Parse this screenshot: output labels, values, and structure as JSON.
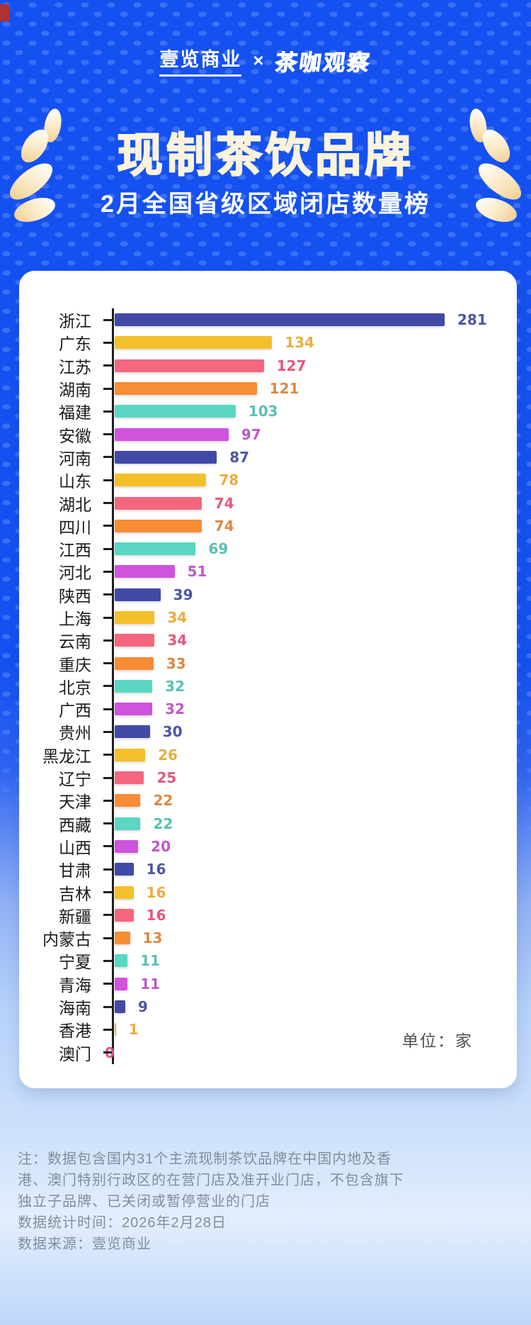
{
  "header": {
    "brand_left": "壹览商业",
    "separator": "×",
    "brand_right": "茶咖观察"
  },
  "title": {
    "main": "现制茶饮品牌",
    "subtitle": "2月全国省级区域闭店数量榜"
  },
  "chart_data": {
    "type": "bar",
    "orientation": "horizontal",
    "title": "现制茶饮品牌2月全国省级区域闭店数量榜",
    "unit_label": "单位：家",
    "categories": [
      "浙江",
      "广东",
      "江苏",
      "湖南",
      "福建",
      "安徽",
      "河南",
      "山东",
      "湖北",
      "四川",
      "江西",
      "河北",
      "陕西",
      "上海",
      "云南",
      "重庆",
      "北京",
      "广西",
      "贵州",
      "黑龙江",
      "辽宁",
      "天津",
      "西藏",
      "山西",
      "甘肃",
      "吉林",
      "新疆",
      "内蒙古",
      "宁夏",
      "青海",
      "海南",
      "香港",
      "澳门"
    ],
    "values": [
      281,
      134,
      127,
      121,
      103,
      97,
      87,
      78,
      74,
      74,
      69,
      51,
      39,
      34,
      34,
      33,
      32,
      32,
      30,
      26,
      25,
      22,
      22,
      20,
      16,
      16,
      16,
      13,
      11,
      11,
      9,
      1,
      0
    ],
    "max_value": 281,
    "xlim": [
      0,
      281
    ],
    "grid": false,
    "legend": false,
    "bar_colors_cycle": [
      "#4149A6",
      "#F4C02A",
      "#F4677E",
      "#F78D35",
      "#5BD6C3",
      "#CF53DC"
    ],
    "value_text_colors_cycle": [
      "#4A55A5",
      "#E9AD41",
      "#E4577A",
      "#DE8840",
      "#59BFB2",
      "#C058C8"
    ],
    "axis_color": "#1F1F1F"
  },
  "footer": {
    "lines": [
      "注：数据包含国内31个主流现制茶饮品牌在中国内地及香",
      "港、澳门特别行政区的在营门店及准开业门店，不包含旗下",
      "独立子品牌、已关闭或暂停营业的门店",
      "数据统计时间：2026年2月28日",
      "数据来源：壹览商业"
    ]
  },
  "colors": {
    "background_top": "#1551F0",
    "background_bottom": "#BED7F9",
    "card": "#FFFFFF",
    "title_text": "#FBF3DC",
    "laurel_gold": "#EFCB8C"
  }
}
